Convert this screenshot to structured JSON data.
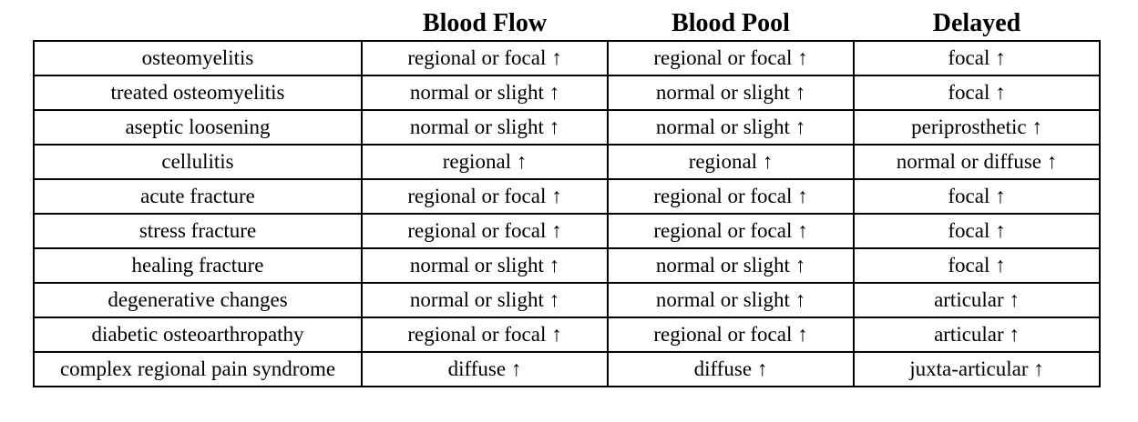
{
  "headers": [
    "",
    "Blood Flow",
    "Blood Pool",
    "Delayed"
  ],
  "rows": [
    [
      "osteomyelitis",
      "regional or focal ↑",
      "regional or focal ↑",
      "focal ↑"
    ],
    [
      "treated osteomyelitis",
      "normal or slight ↑",
      "normal or slight ↑",
      "focal ↑"
    ],
    [
      "aseptic loosening",
      "normal or slight ↑",
      "normal or slight ↑",
      "periprosthetic ↑"
    ],
    [
      "cellulitis",
      "regional ↑",
      "regional ↑",
      "normal or diffuse ↑"
    ],
    [
      "acute fracture",
      "regional or focal ↑",
      "regional or focal ↑",
      "focal ↑"
    ],
    [
      "stress fracture",
      "regional or focal ↑",
      "regional or focal ↑",
      "focal ↑"
    ],
    [
      "healing fracture",
      "normal or slight ↑",
      "normal or slight ↑",
      "focal ↑"
    ],
    [
      "degenerative changes",
      "normal or slight ↑",
      "normal or slight ↑",
      "articular ↑"
    ],
    [
      "diabetic osteoarthropathy",
      "regional or focal ↑",
      "regional or focal ↑",
      "articular ↑"
    ],
    [
      "complex regional pain syndrome",
      "diffuse ↑",
      "diffuse ↑",
      "juxta-articular ↑"
    ]
  ]
}
